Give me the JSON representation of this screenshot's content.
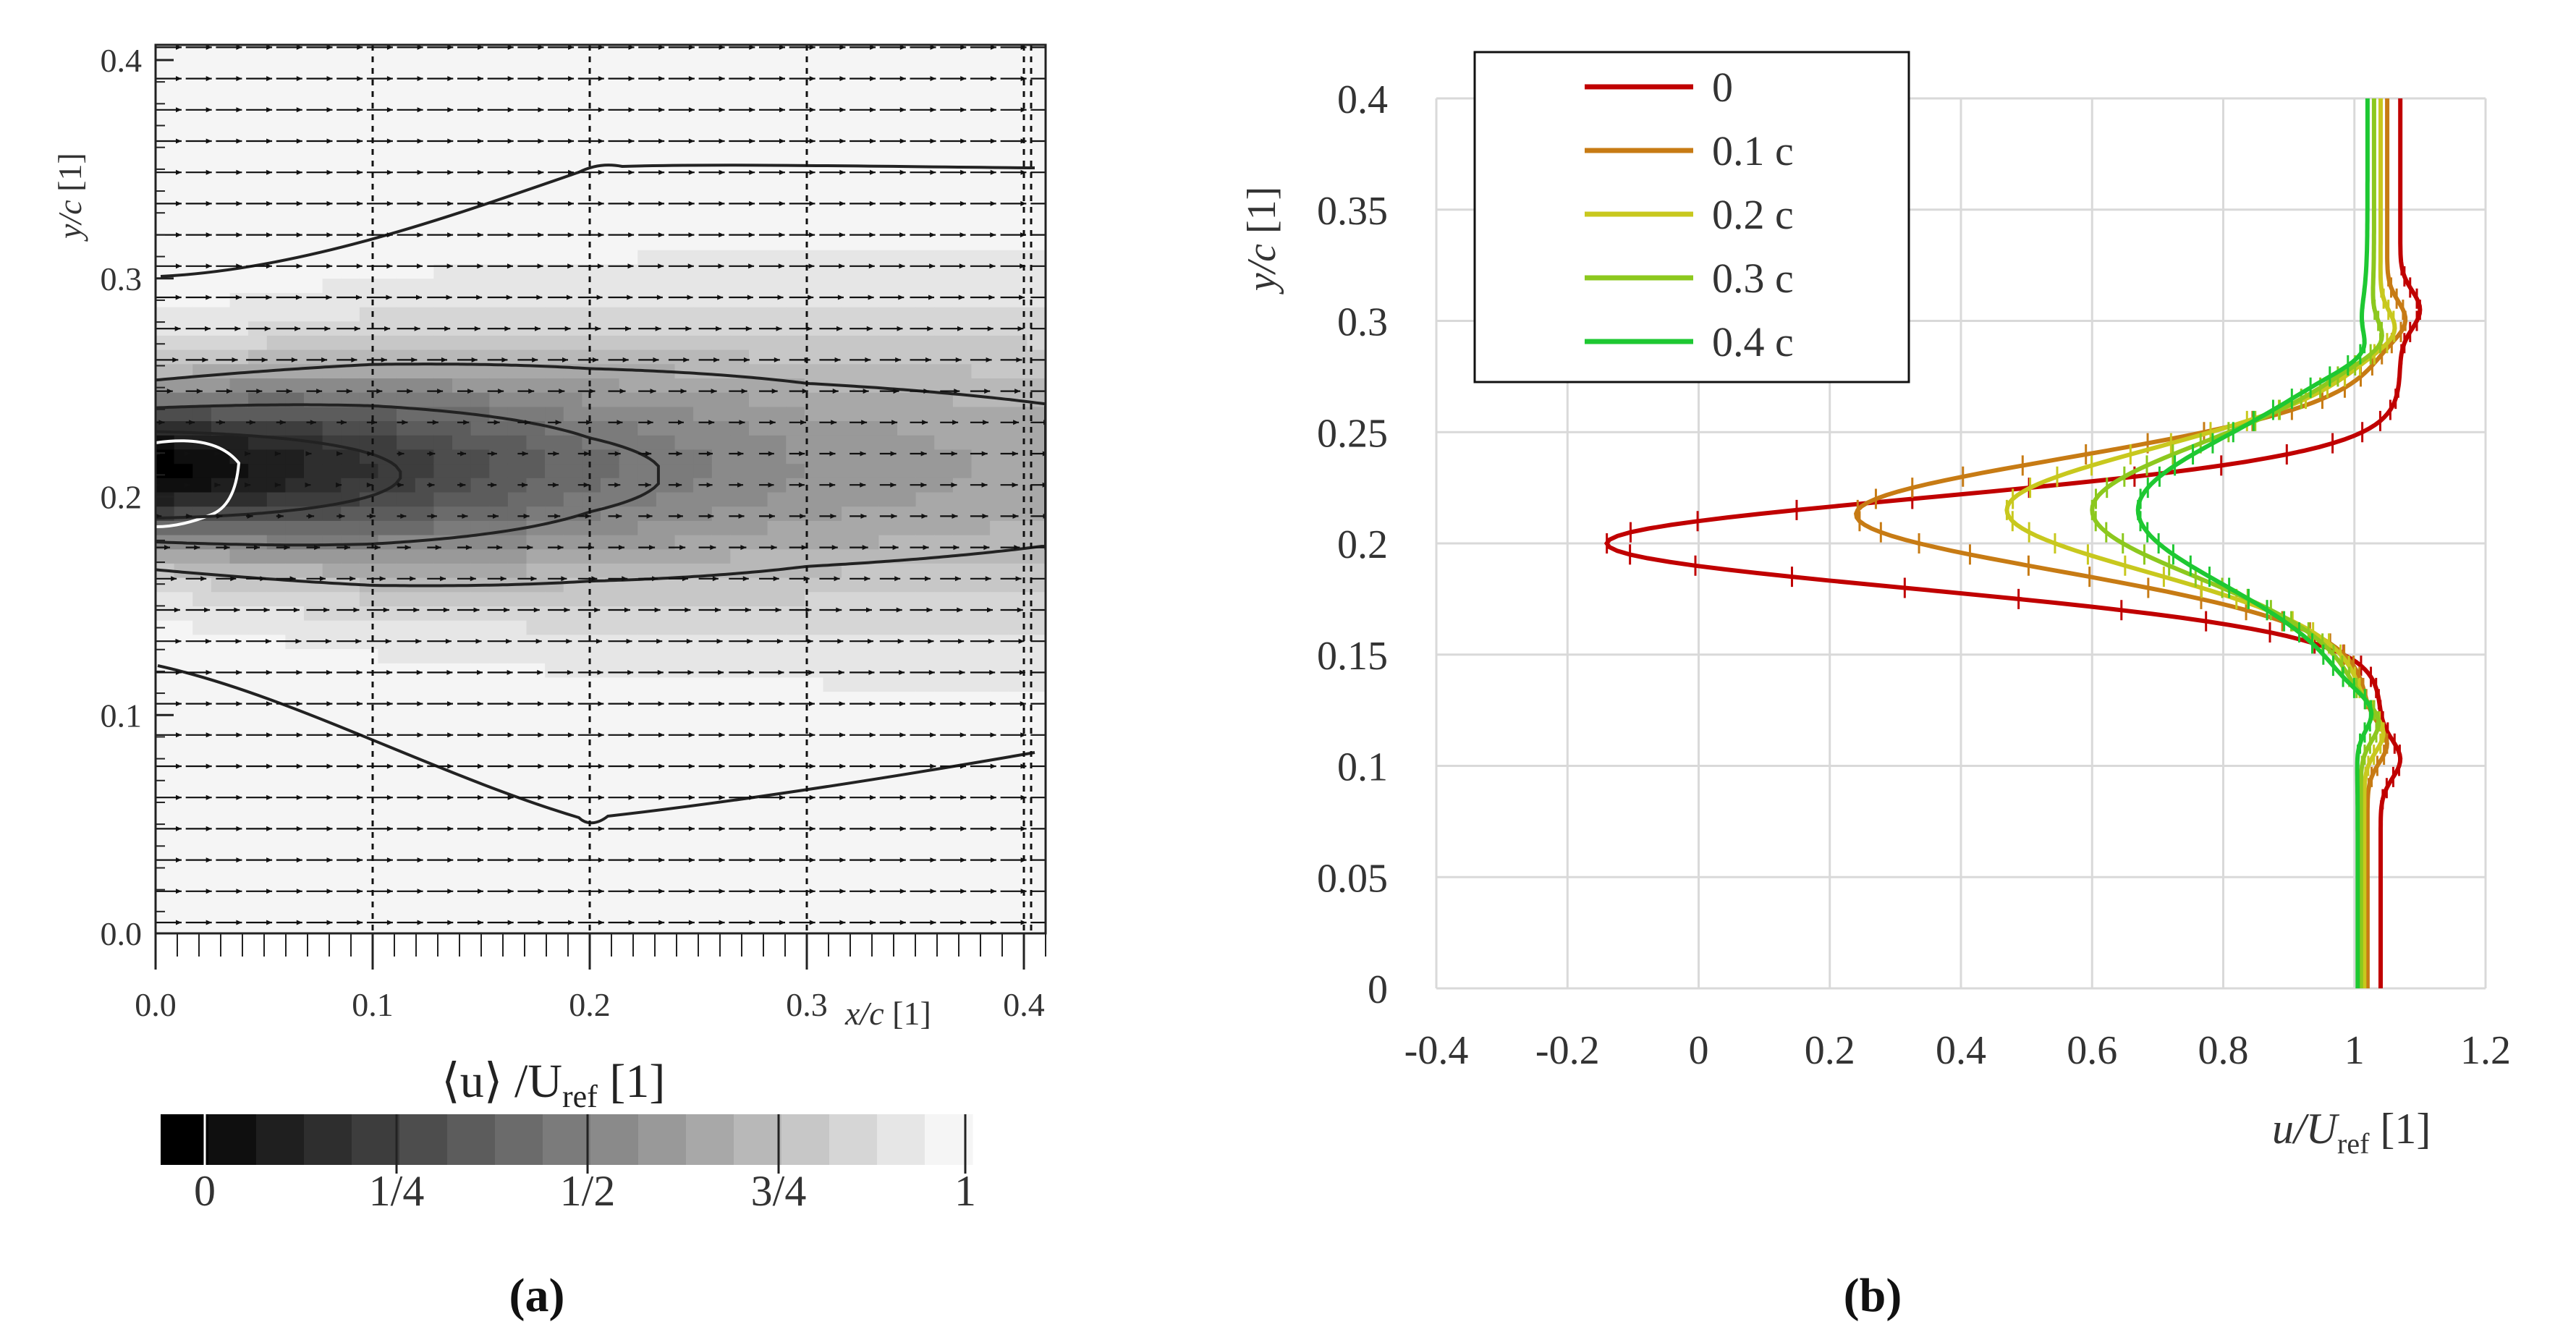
{
  "panel_labels": {
    "a": "(a)",
    "b": "(b)"
  },
  "chart_data": [
    {
      "type": "heatmap",
      "title": "",
      "xlabel": "x/c [1]",
      "ylabel": "y/c [1]",
      "colorbar_label": "⟨u⟩ /U_ref [1]",
      "colorbar_label_parts": {
        "left": "⟨u⟩ /U",
        "sub": "ref",
        "right": " [1]"
      },
      "xlabel_parts": {
        "var": "x/c",
        "unit": " [1]"
      },
      "ylabel_parts": {
        "var": "y/c",
        "unit": " [1]"
      },
      "xlim": [
        0.0,
        0.41
      ],
      "ylim": [
        0.0,
        0.4
      ],
      "x_ticks": [
        "0.0",
        "0.1",
        "0.2",
        "0.3",
        "0.4"
      ],
      "y_ticks": [
        "0.0",
        "0.1",
        "0.2",
        "0.3",
        "0.4"
      ],
      "x_tick_values": [
        0.0,
        0.1,
        0.2,
        0.3,
        0.4
      ],
      "y_tick_values": [
        0.0,
        0.1,
        0.2,
        0.3,
        0.4
      ],
      "dashed_x_lines": [
        0.1,
        0.2,
        0.3,
        0.4
      ],
      "colorbar_ticks": [
        "0",
        "1/4",
        "1/2",
        "3/4",
        "1"
      ],
      "colorbar_range": [
        0,
        1
      ],
      "wake": {
        "center_y": 0.21,
        "deficit_at_x": [
          {
            "x": 0.0,
            "u_min": 0.0,
            "half_width": 0.035
          },
          {
            "x": 0.1,
            "u_min": 0.22,
            "half_width": 0.045
          },
          {
            "x": 0.2,
            "u_min": 0.45,
            "half_width": 0.052
          },
          {
            "x": 0.3,
            "u_min": 0.6,
            "half_width": 0.058
          },
          {
            "x": 0.41,
            "u_min": 0.68,
            "half_width": 0.062
          }
        ]
      },
      "contour_levels": [
        0.0,
        0.25,
        0.5,
        0.75,
        1.0
      ],
      "contour_level_colors": [
        "#ffffff",
        "#222222",
        "#222222",
        "#222222",
        "#222222"
      ]
    },
    {
      "type": "line",
      "title": "",
      "xlabel": "u/U_ref [1]",
      "xlabel_parts": {
        "var": "u/U",
        "sub": "ref",
        "unit": " [1]"
      },
      "ylabel": "y/c [1]",
      "ylabel_parts": {
        "var": "y/c",
        "unit": " [1]"
      },
      "xlim": [
        -0.4,
        1.2
      ],
      "ylim": [
        0,
        0.4
      ],
      "x_ticks": [
        "-0.4",
        "-0.2",
        "0",
        "0.2",
        "0.4",
        "0.6",
        "0.8",
        "1",
        "1.2"
      ],
      "x_tick_values": [
        -0.4,
        -0.2,
        0,
        0.2,
        0.4,
        0.6,
        0.8,
        1.0,
        1.2
      ],
      "y_ticks": [
        "0",
        "0.05",
        "0.1",
        "0.15",
        "0.2",
        "0.25",
        "0.3",
        "0.35",
        "0.4"
      ],
      "y_tick_values": [
        0,
        0.05,
        0.1,
        0.15,
        0.2,
        0.25,
        0.3,
        0.35,
        0.4
      ],
      "grid": true,
      "legend_position": "top-left",
      "series": [
        {
          "name": "0",
          "color": "#c00000",
          "u_inf_low": 1.04,
          "u_inf_high": 1.07,
          "u_min": -0.14,
          "y_center": 0.2,
          "width": 0.024,
          "edge_low": 0.103,
          "edge_high": 0.305
        },
        {
          "name": "0.1 c",
          "color": "#c77b14",
          "u_inf_low": 1.02,
          "u_inf_high": 1.05,
          "u_min": 0.24,
          "y_center": 0.213,
          "width": 0.03,
          "edge_low": 0.11,
          "edge_high": 0.3
        },
        {
          "name": "0.2 c",
          "color": "#c8c81e",
          "u_inf_low": 1.015,
          "u_inf_high": 1.04,
          "u_min": 0.47,
          "y_center": 0.215,
          "width": 0.033,
          "edge_low": 0.115,
          "edge_high": 0.295
        },
        {
          "name": "0.3 c",
          "color": "#8cc81e",
          "u_inf_low": 1.01,
          "u_inf_high": 1.03,
          "u_min": 0.6,
          "y_center": 0.215,
          "width": 0.036,
          "edge_low": 0.12,
          "edge_high": 0.29
        },
        {
          "name": "0.4 c",
          "color": "#1ec832",
          "u_inf_low": 1.005,
          "u_inf_high": 1.02,
          "u_min": 0.67,
          "y_center": 0.215,
          "width": 0.04,
          "edge_low": 0.125,
          "edge_high": 0.285
        }
      ]
    }
  ]
}
